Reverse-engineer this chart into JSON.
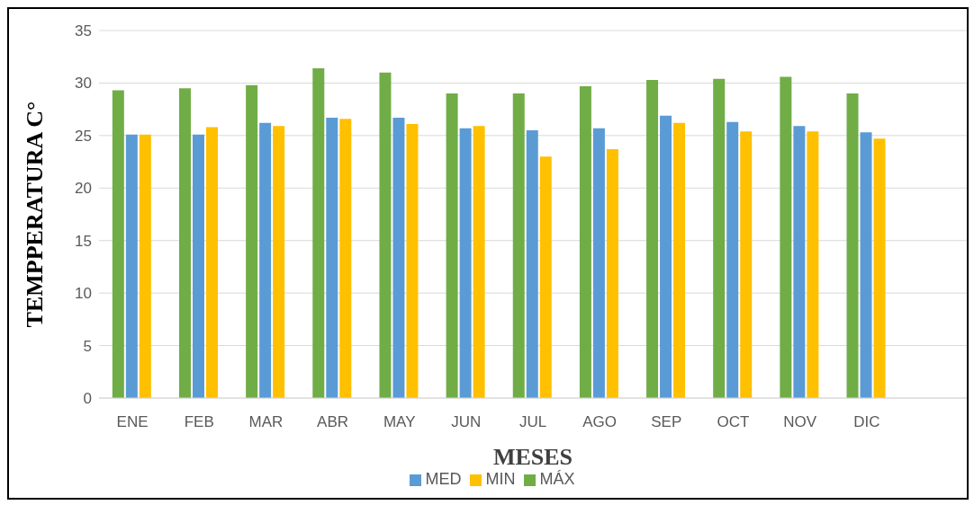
{
  "chart_data": {
    "type": "bar",
    "xlabel": "MESES",
    "ylabel": "TEMPPERATURA C°",
    "categories": [
      "ENE",
      "FEB",
      "MAR",
      "ABR",
      "MAY",
      "JUN",
      "JUL",
      "AGO",
      "SEP",
      "OCT",
      "NOV",
      "DIC",
      null
    ],
    "series": [
      {
        "name": "MÁX",
        "color": "#70ad47",
        "values": [
          29.3,
          29.5,
          29.8,
          31.4,
          31.0,
          29.0,
          29.0,
          29.7,
          30.3,
          30.4,
          30.6,
          29.0,
          null
        ]
      },
      {
        "name": "MED",
        "color": "#5b9bd5",
        "values": [
          25.1,
          25.1,
          26.2,
          26.7,
          26.7,
          25.7,
          25.5,
          25.7,
          26.9,
          26.3,
          25.9,
          25.3,
          null
        ]
      },
      {
        "name": "MIN",
        "color": "#ffc000",
        "values": [
          25.1,
          25.8,
          25.9,
          26.6,
          26.1,
          25.9,
          23.0,
          23.7,
          26.2,
          25.4,
          25.4,
          24.7,
          null
        ]
      }
    ],
    "ylim": [
      0,
      35
    ],
    "yticks": [
      0,
      5,
      10,
      15,
      20,
      25,
      30,
      35
    ],
    "grid": "y",
    "legend": "bottom"
  }
}
